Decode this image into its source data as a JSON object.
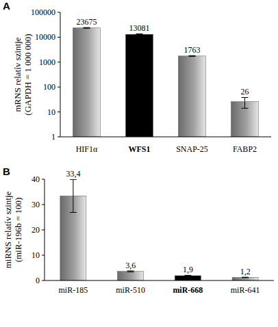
{
  "chart_data": [
    {
      "type": "bar",
      "panel": "A",
      "ylabel": [
        "mRNS relatív szintje",
        "(GAPDH = 1 000 000)"
      ],
      "categories": [
        "HIF1α",
        "WFS1",
        "SNAP-25",
        "FABP2"
      ],
      "values": [
        23675,
        13081,
        1763,
        26
      ],
      "errors": [
        800,
        600,
        60,
        12
      ],
      "colors": [
        "#a0a0a0",
        "#000000",
        "#a0a0a0",
        "#a0a0a0"
      ],
      "log": "y",
      "ylim": [
        1,
        100000
      ],
      "yticks": [
        1,
        10,
        100,
        1000,
        10000,
        100000
      ],
      "data_labels": true
    },
    {
      "type": "bar",
      "panel": "B",
      "ylabel": [
        "miRNS relatív szintje",
        "(miR-196b = 100)"
      ],
      "categories": [
        "miR-185",
        "miR-510",
        "miR-668",
        "miR-641"
      ],
      "values": [
        33.4,
        3.6,
        1.9,
        1.2
      ],
      "value_labels": [
        "33,4",
        "3,6",
        "1,9",
        "1,2"
      ],
      "errors": [
        6.5,
        0.2,
        0.15,
        0.1
      ],
      "colors": [
        "#a0a0a0",
        "#a0a0a0",
        "#000000",
        "#a0a0a0"
      ],
      "ylim": [
        0,
        40
      ],
      "yticks": [
        0,
        10,
        20,
        30,
        40
      ],
      "data_labels": true
    }
  ]
}
